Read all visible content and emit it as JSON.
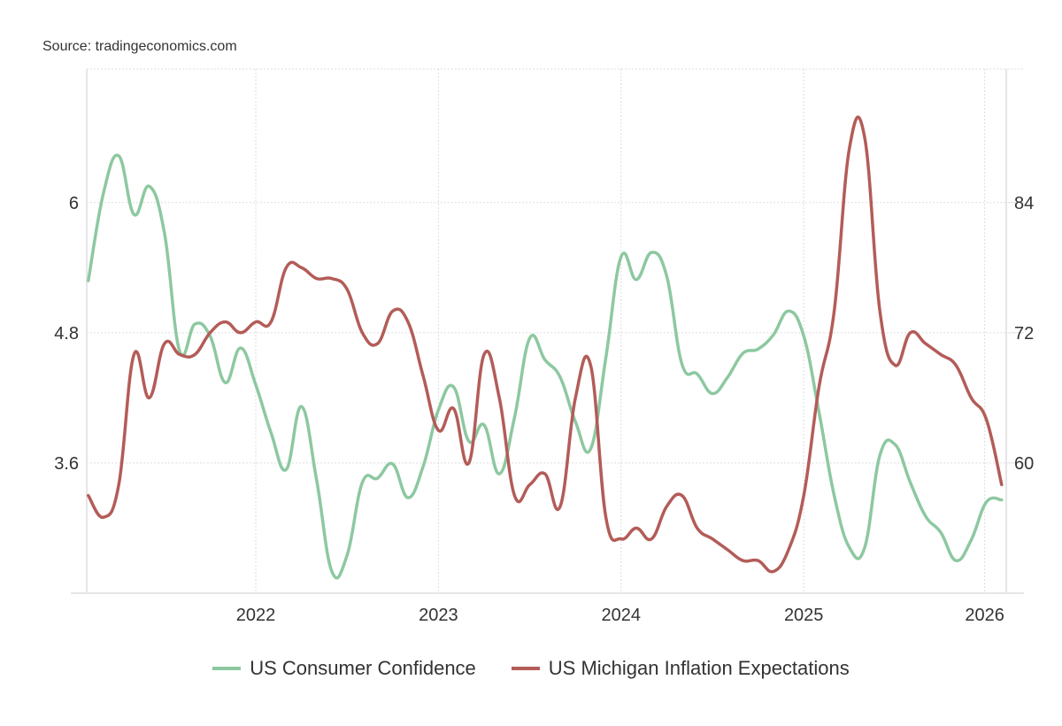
{
  "source_label": "Source: tradingeconomics.com",
  "colors": {
    "consumer_confidence": "#8dc8a0",
    "inflation_expectations": "#b35c58",
    "grid": "#dddddd",
    "axis": "#e6e6e6"
  },
  "chart_data": {
    "type": "line",
    "title": "",
    "xlabel": "",
    "ylabel_left": "",
    "ylabel_right": "",
    "x_start": "2021-02",
    "x_end": "2026-02",
    "x_frequency": "monthly",
    "x_ticks": [
      "2022",
      "2023",
      "2024",
      "2025",
      "2026"
    ],
    "y_left": {
      "ticks": [
        "3.6",
        "4.8",
        "6"
      ],
      "tick_values": [
        3.6,
        4.8,
        6
      ],
      "range": [
        2.4,
        7.23
      ]
    },
    "y_right": {
      "ticks": [
        "60",
        "72",
        "84"
      ],
      "tick_values": [
        60,
        72,
        84
      ],
      "range": [
        48,
        96.3
      ]
    },
    "grid": true,
    "legend_position": "bottom",
    "series": [
      {
        "name": "US Consumer Confidence",
        "axis": "right",
        "color": "#8dc8a0",
        "values": [
          76.8,
          84.9,
          88.3,
          82.9,
          85.5,
          81.2,
          70.3,
          72.8,
          71.7,
          67.4,
          70.6,
          67.2,
          62.8,
          59.4,
          65.2,
          58.4,
          50.0,
          51.5,
          58.2,
          58.6,
          59.9,
          56.8,
          59.7,
          64.9,
          67.0,
          62.0,
          63.5,
          59.0,
          64.2,
          71.5,
          69.5,
          67.9,
          63.8,
          61.3,
          69.7,
          79.0,
          76.9,
          79.4,
          77.2,
          69.1,
          68.2,
          66.4,
          67.9,
          70.1,
          70.5,
          71.8,
          74.0,
          71.7,
          64.7,
          57.0,
          52.2,
          52.2,
          60.7,
          61.7,
          58.2,
          55.1,
          53.6,
          51.0,
          52.9,
          56.4,
          56.6
        ]
      },
      {
        "name": "US Michigan Inflation Expectations",
        "axis": "left",
        "color": "#b35c58",
        "values": [
          3.3,
          3.1,
          3.4,
          4.6,
          4.2,
          4.7,
          4.6,
          4.6,
          4.8,
          4.9,
          4.8,
          4.9,
          4.9,
          5.4,
          5.4,
          5.3,
          5.3,
          5.2,
          4.8,
          4.7,
          5.0,
          4.9,
          4.4,
          3.9,
          4.1,
          3.6,
          4.6,
          4.2,
          3.3,
          3.4,
          3.5,
          3.2,
          4.2,
          4.5,
          3.1,
          2.9,
          3.0,
          2.9,
          3.2,
          3.3,
          3.0,
          2.9,
          2.8,
          2.7,
          2.7,
          2.6,
          2.8,
          3.3,
          4.3,
          5.0,
          6.5,
          6.6,
          5.0,
          4.5,
          4.8,
          4.7,
          4.6,
          4.5,
          4.2,
          4.0,
          3.4
        ]
      }
    ]
  },
  "legend": [
    {
      "label": "US Consumer Confidence",
      "color": "#8dc8a0"
    },
    {
      "label": "US Michigan Inflation Expectations",
      "color": "#b35c58"
    }
  ]
}
